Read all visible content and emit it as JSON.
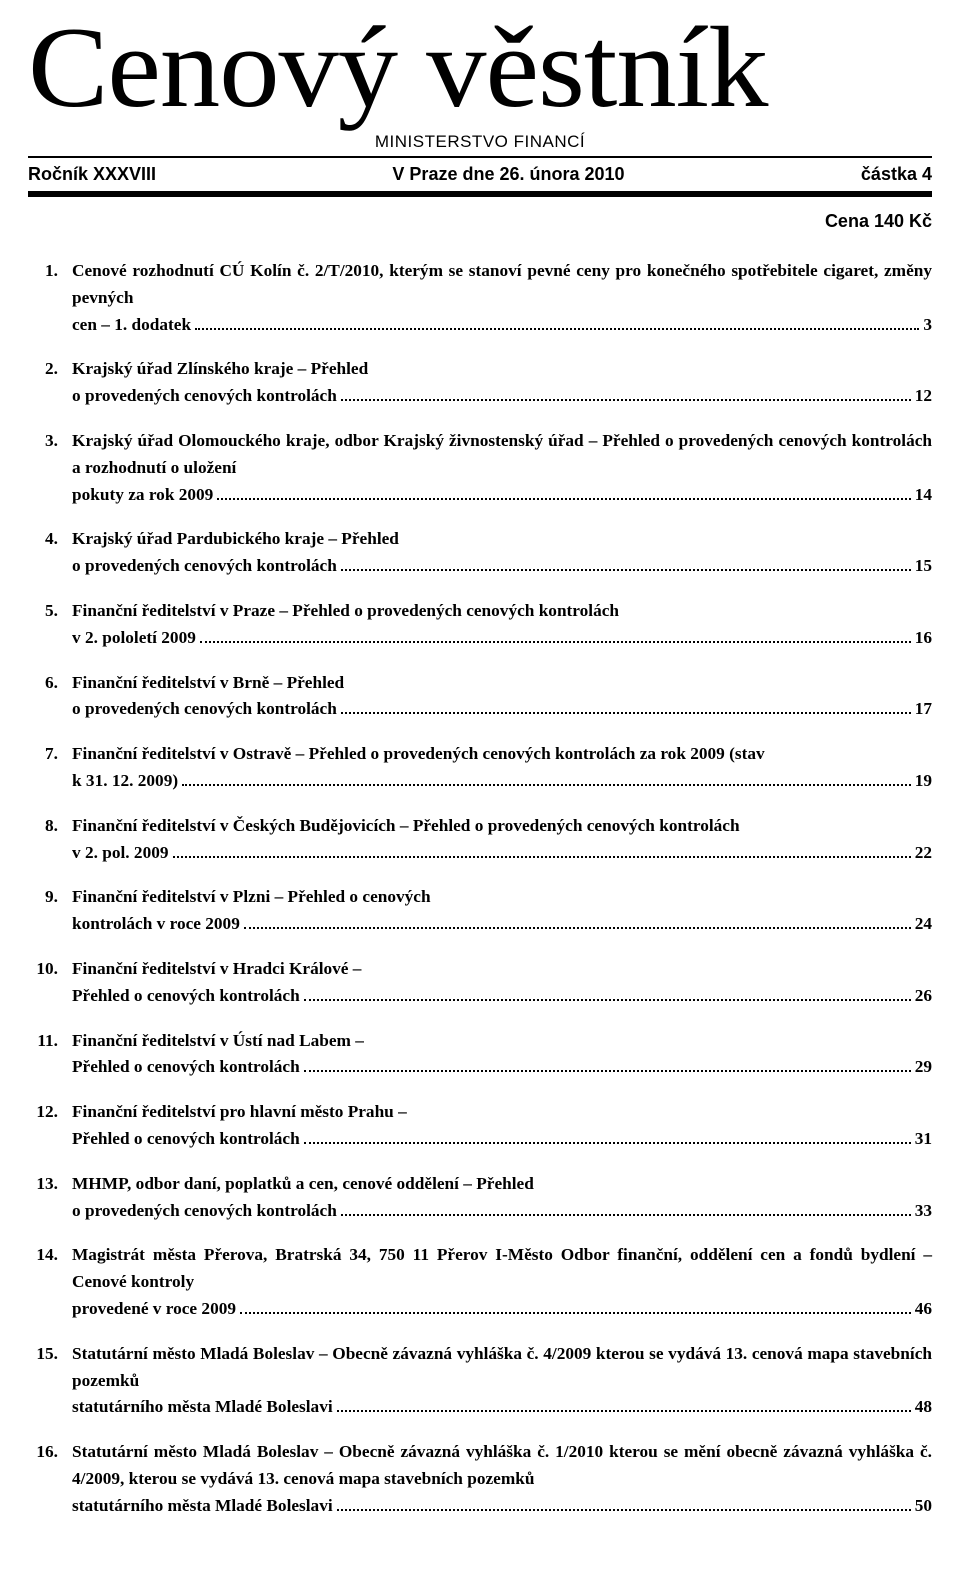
{
  "masthead": "Cenový věstník",
  "subhead": "MINISTERSTVO FINANCÍ",
  "issue": {
    "left": "Ročník XXXVIII",
    "center": "V Praze dne 26. února 2010",
    "right": "částka 4"
  },
  "price": "Cena 140 Kč",
  "toc": [
    {
      "n": "1.",
      "text": "Cenové rozhodnutí CÚ Kolín č. 2/T/2010, kterým se stanoví pevné ceny pro konečného spotřebitele cigaret, změny pevných cen – 1. dodatek",
      "page": "3"
    },
    {
      "n": "2.",
      "text": "Krajský úřad Zlínského kraje – Přehled o provedených cenových kontrolách",
      "page": "12"
    },
    {
      "n": "3.",
      "text": "Krajský úřad Olomouckého kraje, odbor Krajský živnostenský úřad – Přehled o provedených cenových kontrolách a rozhodnutí o uložení pokuty za rok 2009",
      "page": "14"
    },
    {
      "n": "4.",
      "text": "Krajský úřad Pardubického kraje – Přehled o provedených cenových kontrolách",
      "page": "15"
    },
    {
      "n": "5.",
      "text": "Finanční ředitelství v Praze – Přehled o provedených cenových kontrolách v 2. pololetí 2009",
      "page": "16"
    },
    {
      "n": "6.",
      "text": "Finanční ředitelství v Brně – Přehled o provedených cenových kontrolách",
      "page": "17"
    },
    {
      "n": "7.",
      "text": "Finanční ředitelství v Ostravě – Přehled o provedených cenových kontrolách za rok 2009 (stav k 31. 12. 2009)",
      "page": "19"
    },
    {
      "n": "8.",
      "text": "Finanční ředitelství v Českých Budějovicích – Přehled o provedených cenových kontrolách v 2. pol. 2009",
      "page": "22"
    },
    {
      "n": "9.",
      "text": "Finanční ředitelství v Plzni – Přehled o cenových kontrolách v roce 2009",
      "page": "24"
    },
    {
      "n": "10.",
      "text": "Finanční ředitelství v Hradci Králové – Přehled o cenových kontrolách",
      "page": "26"
    },
    {
      "n": "11.",
      "text": "Finanční ředitelství v Ústí nad Labem – Přehled o cenových kontrolách",
      "page": "29"
    },
    {
      "n": "12.",
      "text": "Finanční ředitelství pro hlavní město Prahu – Přehled o cenových kontrolách",
      "page": "31"
    },
    {
      "n": "13.",
      "text": "MHMP, odbor daní, poplatků a cen, cenové oddělení – Přehled o provedených cenových kontrolách",
      "page": "33"
    },
    {
      "n": "14.",
      "text": "Magistrát města Přerova, Bratrská 34, 750 11 Přerov I-Město Odbor finanční, oddělení cen a fondů bydlení – Cenové kontroly provedené v roce 2009",
      "page": "46"
    },
    {
      "n": "15.",
      "text": "Statutární město Mladá Boleslav – Obecně závazná vyhláška č. 4/2009 kterou se vydává 13. cenová mapa stavebních pozemků statutárního města Mladé Boleslavi",
      "page": "48"
    },
    {
      "n": "16.",
      "text": "Statutární město Mladá Boleslav – Obecně závazná vyhláška č. 1/2010 kterou se mění obecně závazná vyhláška č. 4/2009, kterou se vydává 13. cenová mapa stavebních pozemků statutárního města Mladé Boleslavi",
      "page": "50"
    }
  ]
}
